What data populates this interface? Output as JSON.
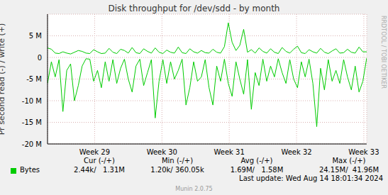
{
  "chart_data": {
    "type": "line",
    "title": "Disk throughput for /dev/sdd - by month",
    "y_label": "Pr second read (-) / write (+)",
    "side_text": "RRDTOOL / TOBI OETIKER",
    "footer": "Munin 2.0.75",
    "last_update": "Last update: Wed Aug 14 18:01:34 2024",
    "grid": true,
    "x": [
      0,
      0.4,
      0.8,
      1.2,
      1.6,
      2,
      2.4,
      2.8,
      3.2,
      3.6,
      4,
      4.4,
      4.8,
      5.2,
      5.6,
      6,
      6.4,
      6.8,
      7.2,
      7.6,
      8,
      8.4,
      8.8,
      9.2,
      9.6,
      10,
      10.4,
      10.8,
      11.2,
      11.6,
      12,
      12.4,
      12.8,
      13.2,
      13.6,
      14,
      14.4,
      14.8,
      15.2,
      15.6,
      16,
      16.4,
      16.8,
      17.2,
      17.6,
      18,
      18.4,
      18.8,
      19.2,
      19.6,
      20,
      20.4,
      20.8,
      21.2,
      21.6,
      22,
      22.4,
      22.8,
      23.2,
      23.6,
      24,
      24.4,
      24.8,
      25.2,
      25.6,
      26,
      26.4,
      26.8,
      27.2,
      27.6,
      28,
      28.4,
      28.8,
      29.2,
      29.6,
      30,
      30.4,
      30.8,
      31.2,
      31.6,
      32,
      32.4,
      32.8,
      33.2
    ],
    "xlim": [
      0,
      33.2
    ],
    "xticks": [
      {
        "value": 4.9,
        "label": "Week 29"
      },
      {
        "value": 11.9,
        "label": "Week 30"
      },
      {
        "value": 18.9,
        "label": "Week 31"
      },
      {
        "value": 25.9,
        "label": "Week 32"
      },
      {
        "value": 32.9,
        "label": "Week 33"
      }
    ],
    "ylim": [
      -20,
      10
    ],
    "yticks": [
      {
        "value": 5,
        "label": "5 M"
      },
      0,
      {
        "value": -5,
        "label": "-5 M"
      },
      {
        "value": -10,
        "label": "-10 M"
      },
      {
        "value": -15,
        "label": "-15 M"
      },
      {
        "value": -20,
        "label": "-20 M"
      }
    ],
    "series": [
      {
        "name": "Bytes",
        "color": "#00cc00",
        "values": [
          2.2,
          1.9,
          1.0,
          0.9,
          1.3,
          1.0,
          0.8,
          1.2,
          1.6,
          1.4,
          1.0,
          0.9,
          1.8,
          1.3,
          0.9,
          1.0,
          2.1,
          1.2,
          0.9,
          1.9,
          1.6,
          1.0,
          2.3,
          1.1,
          0.9,
          2.0,
          1.4,
          1.0,
          2.2,
          1.2,
          0.9,
          1.7,
          1.2,
          1.0,
          2.4,
          1.1,
          0.9,
          2.0,
          1.3,
          1.0,
          1.6,
          1.1,
          1.0,
          1.9,
          1.2,
          1.0,
          2.5,
          8.0,
          3.5,
          1.6,
          2.8,
          6.5,
          1.2,
          1.8,
          1.0,
          2.2,
          1.4,
          1.0,
          2.0,
          1.2,
          0.9,
          2.3,
          1.4,
          1.0,
          1.9,
          2.6,
          1.1,
          0.9,
          1.8,
          1.3,
          1.0,
          2.1,
          1.2,
          0.9,
          1.5,
          2.0,
          1.0,
          1.1,
          1.9,
          1.2,
          1.0,
          2.4,
          1.3,
          1.3
        ],
        "read_values": [
          -6.0,
          -1.0,
          -4.5,
          -0.5,
          -12.5,
          -3.0,
          -1.5,
          -10.0,
          -6.5,
          -2.0,
          -0.3,
          -0.4,
          -5.5,
          -3.0,
          -7.0,
          -1.0,
          -5.5,
          -0.5,
          -6.0,
          -2.5,
          -0.4,
          -5.0,
          -8.0,
          -2.0,
          -0.4,
          -6.5,
          -3.5,
          -0.5,
          -14.0,
          -5.5,
          -0.5,
          -6.0,
          -1.0,
          -5.0,
          -3.0,
          -0.4,
          -11.0,
          -7.0,
          -1.0,
          -5.5,
          -4.5,
          -0.5,
          -7.0,
          -11.0,
          -2.0,
          -5.5,
          -0.4,
          -6.0,
          -9.0,
          -1.0,
          -5.0,
          -8.5,
          -0.5,
          -12.0,
          -3.5,
          -6.5,
          -0.4,
          -5.5,
          -2.0,
          -4.5,
          -0.3,
          -3.5,
          -6.0,
          -0.5,
          -5.0,
          -7.0,
          -1.0,
          -4.5,
          -0.4,
          -6.0,
          -16.0,
          -2.5,
          -7.5,
          -0.5,
          -5.5,
          -3.0,
          -6.0,
          -0.5,
          -4.5,
          -7.5,
          -2.0,
          -8.0,
          -5.5,
          -0.1
        ]
      }
    ],
    "legend_table": {
      "columns": [
        "Cur (-/+)",
        "Min (-/+)",
        "Avg (-/+)",
        "Max (-/+)"
      ],
      "rows": [
        {
          "name": "Bytes",
          "values": [
            "2.44k/   1.31M",
            "1.20k/ 360.05k",
            "1.69M/   1.58M",
            "24.15M/  41.96M"
          ]
        }
      ]
    }
  }
}
